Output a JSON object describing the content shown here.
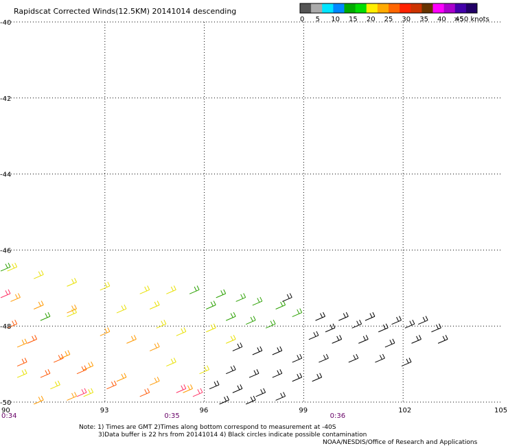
{
  "chart_data": {
    "type": "scatter",
    "title": "Rapidscat Corrected Winds(12.5KM) 20141014 descending",
    "xlim": [
      90,
      105
    ],
    "ylim": [
      -50,
      -40
    ],
    "x_ticks": [
      "90",
      "93",
      "96",
      "99",
      "102",
      "105"
    ],
    "y_ticks": [
      "-40",
      "-42",
      "-44",
      "-46",
      "-48",
      "-50"
    ],
    "time_labels": [
      {
        "x": 90,
        "text": "0:34"
      },
      {
        "x": 95,
        "text": "0:35"
      },
      {
        "x": 100,
        "text": "0:36"
      }
    ],
    "grid": true,
    "colorbar": {
      "labels": [
        "0",
        "5",
        "10",
        "15",
        "20",
        "25",
        "30",
        "35",
        "40",
        "45",
        ">50 knots"
      ],
      "colors": [
        "#555555",
        "#aaaaaa",
        "#00e5ff",
        "#0088ff",
        "#00aa00",
        "#00dd00",
        "#ffee00",
        "#ffaa00",
        "#ff6600",
        "#ff2200",
        "#cc3300",
        "#663300",
        "#ff00ff",
        "#aa00cc",
        "#4400aa",
        "#220066"
      ]
    },
    "series": [
      {
        "color": "#e8e000",
        "points": [
          [
            90.2,
            -46.5
          ],
          [
            91,
            -46.7
          ],
          [
            92,
            -46.9
          ],
          [
            93,
            -47.0
          ],
          [
            94.2,
            -47.1
          ],
          [
            94.5,
            -47.5
          ],
          [
            95.0,
            -47.1
          ],
          [
            92,
            -47.7
          ],
          [
            93.5,
            -47.6
          ],
          [
            94.7,
            -48.0
          ],
          [
            95.3,
            -48.2
          ],
          [
            96.2,
            -48.1
          ],
          [
            96.8,
            -48.4
          ],
          [
            95.0,
            -49.0
          ],
          [
            96.0,
            -49.2
          ],
          [
            90.5,
            -49.3
          ],
          [
            91.5,
            -49.6
          ],
          [
            92.5,
            -49.8
          ]
        ]
      },
      {
        "color": "#ff9900",
        "points": [
          [
            90.3,
            -47.3
          ],
          [
            91,
            -47.5
          ],
          [
            92,
            -47.6
          ],
          [
            93,
            -48.2
          ],
          [
            93.8,
            -48.4
          ],
          [
            94.5,
            -48.6
          ],
          [
            90.5,
            -48.5
          ],
          [
            91.8,
            -48.8
          ],
          [
            92.5,
            -49.1
          ],
          [
            93.5,
            -49.4
          ],
          [
            94.5,
            -49.5
          ],
          [
            95.5,
            -49.7
          ],
          [
            91,
            -50.0
          ],
          [
            92,
            -49.9
          ]
        ]
      },
      {
        "color": "#ff5500",
        "points": [
          [
            90.2,
            -48.0
          ],
          [
            90.8,
            -48.4
          ],
          [
            91.6,
            -48.9
          ],
          [
            92.3,
            -49.2
          ],
          [
            93.2,
            -49.6
          ],
          [
            94.2,
            -49.8
          ],
          [
            90.5,
            -49.0
          ],
          [
            91.2,
            -49.3
          ]
        ]
      },
      {
        "color": "#ff3366",
        "points": [
          [
            90.0,
            -47.2
          ],
          [
            92.3,
            -49.8
          ],
          [
            95.3,
            -49.7
          ],
          [
            95.8,
            -49.8
          ]
        ]
      },
      {
        "color": "#2aa000",
        "points": [
          [
            95.7,
            -47.1
          ],
          [
            96.5,
            -47.2
          ],
          [
            97.1,
            -47.3
          ],
          [
            97.6,
            -47.4
          ],
          [
            98.3,
            -47.5
          ],
          [
            98.8,
            -47.7
          ],
          [
            96.8,
            -47.8
          ],
          [
            97.4,
            -47.9
          ],
          [
            98.0,
            -48.0
          ],
          [
            96.2,
            -47.5
          ],
          [
            91.2,
            -47.8
          ],
          [
            90.0,
            -46.5
          ]
        ]
      },
      {
        "color": "#000000",
        "points": [
          [
            98.5,
            -47.3
          ],
          [
            99.5,
            -47.8
          ],
          [
            100.2,
            -47.8
          ],
          [
            101.0,
            -47.8
          ],
          [
            101.8,
            -47.9
          ],
          [
            102.6,
            -47.9
          ],
          [
            99.8,
            -48.1
          ],
          [
            100.6,
            -48.0
          ],
          [
            101.4,
            -48.1
          ],
          [
            102.2,
            -48.0
          ],
          [
            103.0,
            -48.1
          ],
          [
            99.3,
            -48.3
          ],
          [
            100.0,
            -48.4
          ],
          [
            100.8,
            -48.4
          ],
          [
            101.6,
            -48.5
          ],
          [
            102.4,
            -48.4
          ],
          [
            103.2,
            -48.4
          ],
          [
            97.0,
            -48.6
          ],
          [
            97.6,
            -48.7
          ],
          [
            98.2,
            -48.7
          ],
          [
            98.8,
            -48.9
          ],
          [
            99.6,
            -48.9
          ],
          [
            100.5,
            -48.9
          ],
          [
            101.3,
            -48.9
          ],
          [
            102.1,
            -49.0
          ],
          [
            96.8,
            -49.2
          ],
          [
            97.5,
            -49.3
          ],
          [
            98.2,
            -49.3
          ],
          [
            98.8,
            -49.4
          ],
          [
            99.4,
            -49.4
          ],
          [
            96.3,
            -49.6
          ],
          [
            97.0,
            -49.7
          ],
          [
            97.7,
            -49.8
          ],
          [
            98.3,
            -49.9
          ],
          [
            96.6,
            -50.0
          ],
          [
            97.4,
            -50.0
          ]
        ]
      }
    ]
  },
  "notes": [
    "Note: 1) Times are GMT 2)Times along bottom correspond to measurement at -40S",
    "3)Data buffer is 22 hrs from 20141014 4) Black circles indicate possible contamination",
    "NOAA/NESDIS/Office of Research and Applications"
  ]
}
